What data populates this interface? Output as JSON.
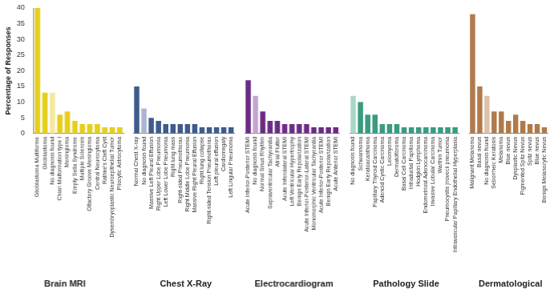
{
  "chart_data": [
    {
      "type": "bar",
      "title": "Brain MRI",
      "y_label": "Percentage of Responses",
      "categories": [
        "Glioblastoma Multiforme",
        "Glioblastoma",
        "No diagnosis found",
        "Chiari Malformation type I",
        "Meningioma",
        "Empty Sella Syndrome",
        "Multiple Sclerosis",
        "Olfactory Groove Meningioma",
        "Central Neurocytoma",
        "Rathke's Cleft Cyst",
        "Dysembryoplastic Neuroepithelial Tumor",
        "Pilocytic Astrocytoma"
      ],
      "values": [
        40,
        13,
        13,
        6,
        7,
        4,
        3,
        3,
        3,
        2,
        2,
        2
      ],
      "colors": [
        "#e6cf1c",
        "#e6cf1c",
        "#f4e8a0",
        "#e6cf1c",
        "#e6cf1c",
        "#e6cf1c",
        "#e6cf1c",
        "#e6cf1c",
        "#e6cf1c",
        "#e6cf1c",
        "#e6cf1c",
        "#e6cf1c"
      ],
      "ylim": [
        0,
        40
      ],
      "yticks": [
        0,
        5,
        10,
        15,
        20,
        25,
        30,
        35,
        40
      ],
      "grid": false
    },
    {
      "type": "bar",
      "title": "Chest X-Ray",
      "categories": [
        "Normal Chest X-ray",
        "No diagnosis found",
        "Massive Left Pleural Effusion",
        "Right Upper Lobe Pneumonia",
        "Left Lower Lobe Pneumonia",
        "Right lung mass",
        "Right-sided Pneumothorax",
        "Right Middle Lobe Pneumonia",
        "Massive Right Pleural Effusion",
        "Right lung collapse",
        "Right-sided Tension Pneumothorax",
        "Left pleural effusion",
        "Cardiomegaly",
        "Left Lingular Pneumonia"
      ],
      "values": [
        15,
        8,
        5,
        4,
        3,
        3,
        3,
        3,
        3,
        2,
        2,
        2,
        2,
        2
      ],
      "colors": [
        "#3f5b8e",
        "#a9b6cf",
        "#3f5b8e",
        "#3f5b8e",
        "#3f5b8e",
        "#3f5b8e",
        "#3f5b8e",
        "#3f5b8e",
        "#3f5b8e",
        "#3f5b8e",
        "#3f5b8e",
        "#3f5b8e",
        "#3f5b8e",
        "#3f5b8e"
      ],
      "ylim": [
        0,
        40
      ],
      "yticks": [
        0,
        5,
        10,
        15,
        20,
        25,
        30,
        35,
        40
      ],
      "grid": false,
      "tick_labels": "x"
    },
    {
      "type": "bar",
      "title": "Electrocardiogram",
      "categories": [
        "Acute Inferior-Posterior STEMI",
        "No diagnosis found",
        "Normal Sinus Rhythm",
        "Supraventricular Tachycardia",
        "Atrial Flutter",
        "Acute Inferolateral STEMI",
        "Left Ventricular Hypertrophy",
        "Benign Early Repolarization",
        "Acute Inferior-Posterior-Lateral STEMI",
        "Monomorphic Ventricular Tachycardia",
        "Acute Inferior-Posterior STEMI",
        "Benign Early Repolarization",
        "Acute Anterior STEMI"
      ],
      "values": [
        17,
        12,
        7,
        4,
        4,
        3,
        3,
        3,
        3,
        2,
        2,
        2,
        2
      ],
      "colors": [
        "#6a2c83",
        "#c3a6cf",
        "#6a2c83",
        "#6a2c83",
        "#6a2c83",
        "#6a2c83",
        "#6a2c83",
        "#6a2c83",
        "#6a2c83",
        "#6a2c83",
        "#6a2c83",
        "#6a2c83",
        "#6a2c83"
      ],
      "ylim": [
        0,
        40
      ],
      "yticks": [
        0,
        5,
        10,
        15,
        20,
        25,
        30,
        35,
        40
      ],
      "grid": false,
      "tick_labels": "x"
    },
    {
      "type": "bar",
      "title": "Pathology Slide",
      "categories": [
        "No diagnosis found",
        "Schwannoma",
        "Keratoacanthoma",
        "Papillary Thyroid Carcinoma",
        "Adenoid Cystic Carcinoma",
        "Leiomyoma",
        "Dermatofibroma",
        "Basal Cell Carcinoma",
        "Intraductal Papilloma",
        "Hodgkin Lymphoma",
        "Endometrioid Adenocarcinoma",
        "Invasive Lobular Carcinoma",
        "Warthin Tumor",
        "Pneumocystis jirovecii pneumonia",
        "Intravascular Papillary Endothelial Hyperplasia"
      ],
      "values": [
        12,
        10,
        6,
        6,
        3,
        3,
        3,
        2,
        2,
        2,
        2,
        2,
        2,
        2,
        2
      ],
      "colors": [
        "#a8d8c8",
        "#3a9b80",
        "#3a9b80",
        "#3a9b80",
        "#3a9b80",
        "#3a9b80",
        "#3a9b80",
        "#3a9b80",
        "#3a9b80",
        "#3a9b80",
        "#3a9b80",
        "#3a9b80",
        "#3a9b80",
        "#3a9b80",
        "#3a9b80"
      ],
      "ylim": [
        0,
        40
      ],
      "yticks": [
        0,
        5,
        10,
        15,
        20,
        25,
        30,
        35,
        40
      ],
      "grid": false,
      "tick_labels": "x"
    },
    {
      "type": "bar",
      "title": "Dermatological",
      "categories": [
        "Malignant Melanoma",
        "Basal nevus",
        "No diagnosis found",
        "Seborrheic Keratosis",
        "Melanoma",
        "Blue nevus",
        "Dysplastic Nevus",
        "Pigmented Spitz Nevus",
        "Spitz nevus",
        "Blue nevus",
        "Benign Melanocytic Nevus"
      ],
      "values": [
        38,
        15,
        12,
        7,
        7,
        4,
        6,
        4,
        3,
        3,
        2
      ],
      "colors": [
        "#b07a4b",
        "#b07a4b",
        "#dcc2a8",
        "#b07a4b",
        "#b07a4b",
        "#b07a4b",
        "#b07a4b",
        "#b07a4b",
        "#b07a4b",
        "#b07a4b",
        "#b07a4b"
      ],
      "ylim": [
        0,
        40
      ],
      "yticks": [
        0,
        5,
        10,
        15,
        20,
        25,
        30,
        35,
        40
      ],
      "grid": false,
      "tick_labels": "x"
    }
  ]
}
